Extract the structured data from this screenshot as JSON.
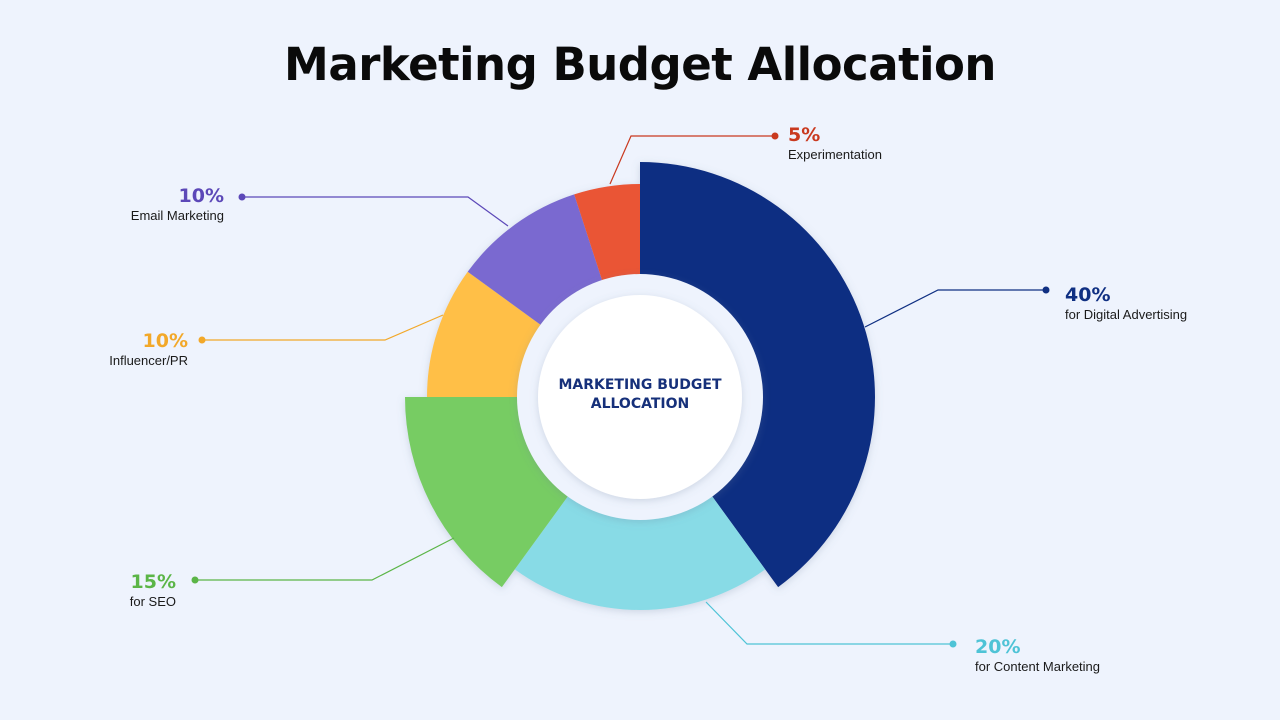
{
  "title": "Marketing Budget Allocation",
  "center_label": "MARKETING BUDGET ALLOCATION",
  "colors": {
    "background": "#eef3fd",
    "digital_advertising": "#0f2f82",
    "content_marketing": "#88dbe6",
    "seo": "#77cc63",
    "influencer_pr": "#ffbf47",
    "email_marketing": "#7a69d0",
    "experimentation": "#ea5434"
  },
  "callouts": [
    {
      "pct": "40%",
      "label": "for Digital Advertising",
      "color": "#0f2f82"
    },
    {
      "pct": "20%",
      "label": "for Content Marketing",
      "color": "#4ec3d6"
    },
    {
      "pct": "15%",
      "label": "for SEO",
      "color": "#5bb547"
    },
    {
      "pct": "10%",
      "label": "Influencer/PR",
      "color": "#f2a829"
    },
    {
      "pct": "10%",
      "label": "Email Marketing",
      "color": "#5c48b8"
    },
    {
      "pct": "5%",
      "label": "Experimentation",
      "color": "#c9391f"
    }
  ],
  "chart_data": {
    "type": "pie",
    "title": "Marketing Budget Allocation",
    "subtitle": "MARKETING BUDGET ALLOCATION",
    "categories": [
      "Digital Advertising",
      "Content Marketing",
      "SEO",
      "Influencer/PR",
      "Email Marketing",
      "Experimentation"
    ],
    "values": [
      40,
      20,
      15,
      10,
      10,
      5
    ],
    "unit": "%",
    "style": "donut with varying slice radii",
    "legend": "callout labels around chart"
  }
}
